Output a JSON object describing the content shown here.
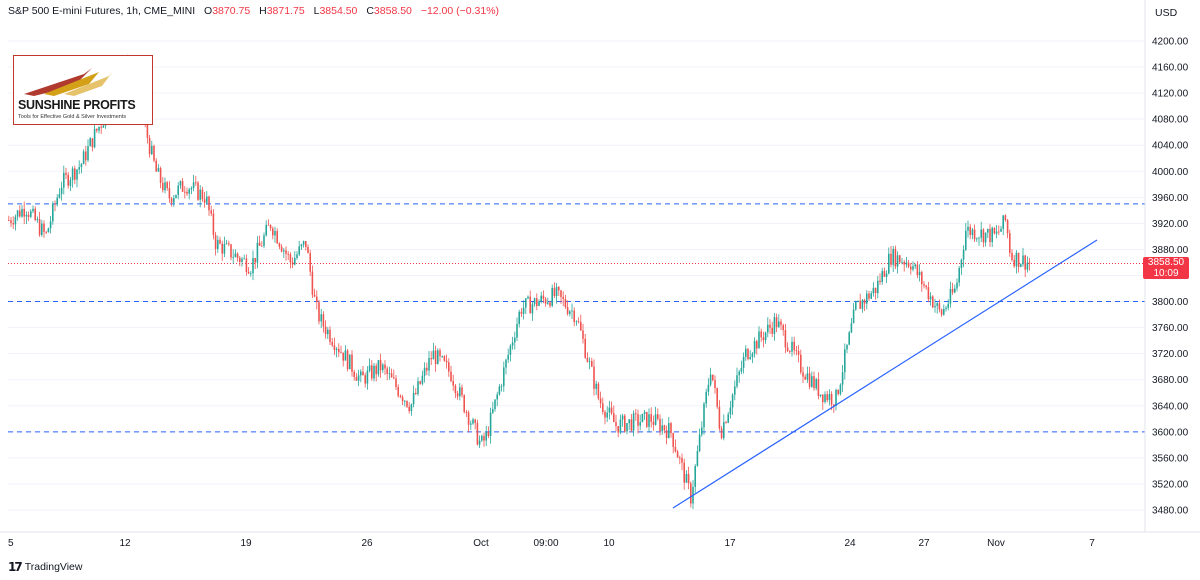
{
  "header": {
    "symbol": "S&P 500 E-mini Futures, 1h, CME_MINI",
    "open_label": "O",
    "open": "3870.75",
    "high_label": "H",
    "high": "3871.75",
    "low_label": "L",
    "low": "3854.50",
    "close_label": "C",
    "close": "3858.50",
    "change": "−12.00 (−0.31%)"
  },
  "currency": "USD",
  "last_price": {
    "value": "3858.50",
    "countdown": "10:09",
    "color": "#f23645"
  },
  "logo": {
    "title": "SUNSHINE PROFITS",
    "subtitle": "Tools for Effective Gold & Silver Investments"
  },
  "footer": {
    "brand": "TradingView",
    "icon": "tradingview-logo-icon"
  },
  "colors": {
    "up": "#26a69a",
    "down": "#ef5350",
    "level_line": "#2962ff",
    "trendline": "#2962ff"
  },
  "chart_data": {
    "type": "candlestick",
    "title": "S&P 500 E-mini Futures, 1h, CME_MINI",
    "y_axis": {
      "min": 3440,
      "max": 4240,
      "ticks": [
        3480,
        3520,
        3560,
        3600,
        3640,
        3680,
        3720,
        3760,
        3800,
        3840,
        3880,
        3920,
        3960,
        4000,
        4040,
        4080,
        4120,
        4160,
        4200
      ],
      "position": "right"
    },
    "x_axis": {
      "ticks": [
        "5",
        "12",
        "19",
        "26",
        "Oct",
        "09:00",
        "10",
        "17",
        "24",
        "27",
        "Nov",
        "7"
      ]
    },
    "price_path": [
      {
        "t": "5",
        "p": 3925
      },
      {
        "t": "7",
        "p": 3945
      },
      {
        "t": "8",
        "p": 3900
      },
      {
        "t": "9",
        "p": 3980
      },
      {
        "t": "10",
        "p": 4010
      },
      {
        "t": "11",
        "p": 4060
      },
      {
        "t": "12",
        "p": 4100
      },
      {
        "t": "13",
        "p": 4170
      },
      {
        "t": "13b",
        "p": 4000
      },
      {
        "t": "14",
        "p": 3960
      },
      {
        "t": "15",
        "p": 3980
      },
      {
        "t": "16",
        "p": 3960
      },
      {
        "t": "16b",
        "p": 3890
      },
      {
        "t": "19",
        "p": 3855
      },
      {
        "t": "20",
        "p": 3920
      },
      {
        "t": "21",
        "p": 3860
      },
      {
        "t": "22",
        "p": 3890
      },
      {
        "t": "22b",
        "p": 3790
      },
      {
        "t": "23",
        "p": 3770
      },
      {
        "t": "26",
        "p": 3680
      },
      {
        "t": "27",
        "p": 3700
      },
      {
        "t": "28",
        "p": 3640
      },
      {
        "t": "29",
        "p": 3720
      },
      {
        "t": "30",
        "p": 3690
      },
      {
        "t": "30b",
        "p": 3580
      },
      {
        "t": "Oct",
        "p": 3590
      },
      {
        "t": "4",
        "p": 3790
      },
      {
        "t": "5",
        "p": 3810
      },
      {
        "t": "6",
        "p": 3780
      },
      {
        "t": "7",
        "p": 3650
      },
      {
        "t": "10",
        "p": 3610
      },
      {
        "t": "11",
        "p": 3620
      },
      {
        "t": "12",
        "p": 3600
      },
      {
        "t": "13",
        "p": 3500
      },
      {
        "t": "13b",
        "p": 3700
      },
      {
        "t": "14",
        "p": 3600
      },
      {
        "t": "17",
        "p": 3720
      },
      {
        "t": "18",
        "p": 3770
      },
      {
        "t": "19",
        "p": 3700
      },
      {
        "t": "20",
        "p": 3660
      },
      {
        "t": "21",
        "p": 3650
      },
      {
        "t": "24",
        "p": 3790
      },
      {
        "t": "25",
        "p": 3820
      },
      {
        "t": "26",
        "p": 3870
      },
      {
        "t": "27",
        "p": 3860
      },
      {
        "t": "28",
        "p": 3780
      },
      {
        "t": "28b",
        "p": 3820
      },
      {
        "t": "31",
        "p": 3910
      },
      {
        "t": "Nov",
        "p": 3900
      },
      {
        "t": "1",
        "p": 3925
      },
      {
        "t": "1b",
        "p": 3870
      },
      {
        "t": "2",
        "p": 3858.5
      }
    ],
    "horizontal_levels": [
      3950,
      3800,
      3600
    ],
    "last_price_line": 3858.5,
    "trendline": {
      "from": {
        "t": "Oct 12",
        "p": 3485
      },
      "to": {
        "t": "Nov 7",
        "p": 3895
      }
    },
    "grid": true,
    "legend": "none"
  }
}
